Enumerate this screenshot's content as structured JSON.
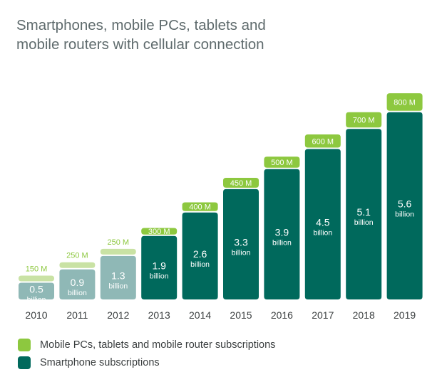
{
  "title_lines": [
    "Smartphones, mobile PCs, tablets and",
    "mobile routers with cellular connection"
  ],
  "legend": [
    {
      "label": "Mobile PCs, tablets and mobile router subscriptions",
      "color": "#8dc83f"
    },
    {
      "label": "Smartphone subscriptions",
      "color": "#00695c"
    }
  ],
  "chart_data": {
    "type": "bar",
    "stacked": true,
    "categories": [
      "2010",
      "2011",
      "2012",
      "2013",
      "2014",
      "2015",
      "2016",
      "2017",
      "2018",
      "2019"
    ],
    "series": [
      {
        "name": "Smartphone subscriptions",
        "unit": "billion",
        "values": [
          0.5,
          0.9,
          1.3,
          1.9,
          2.6,
          3.3,
          3.9,
          4.5,
          5.1,
          5.6
        ],
        "labels": [
          "0.5",
          "0.9",
          "1.3",
          "1.9",
          "2.6",
          "3.3",
          "3.9",
          "4.5",
          "5.1",
          "5.6"
        ],
        "label_suffix": "billion",
        "colors": [
          "#8fb8b6",
          "#8fb8b6",
          "#8fb8b6",
          "#00695c",
          "#00695c",
          "#00695c",
          "#00695c",
          "#00695c",
          "#00695c",
          "#00695c"
        ]
      },
      {
        "name": "Mobile PCs, tablets and mobile router subscriptions",
        "unit": "million",
        "values": [
          150,
          250,
          250,
          300,
          400,
          450,
          500,
          600,
          700,
          800
        ],
        "labels": [
          "150 M",
          "250 M",
          "250 M",
          "300 M",
          "400 M",
          "450 M",
          "500 M",
          "600 M",
          "700 M",
          "800 M"
        ],
        "colors": [
          "#c9e2a4",
          "#c9e2a4",
          "#c9e2a4",
          "#8dc83f",
          "#8dc83f",
          "#8dc83f",
          "#8dc83f",
          "#8dc83f",
          "#8dc83f",
          "#8dc83f"
        ]
      }
    ],
    "grid": false,
    "legend_position": "bottom-left",
    "xlabel": "",
    "ylabel": ""
  }
}
